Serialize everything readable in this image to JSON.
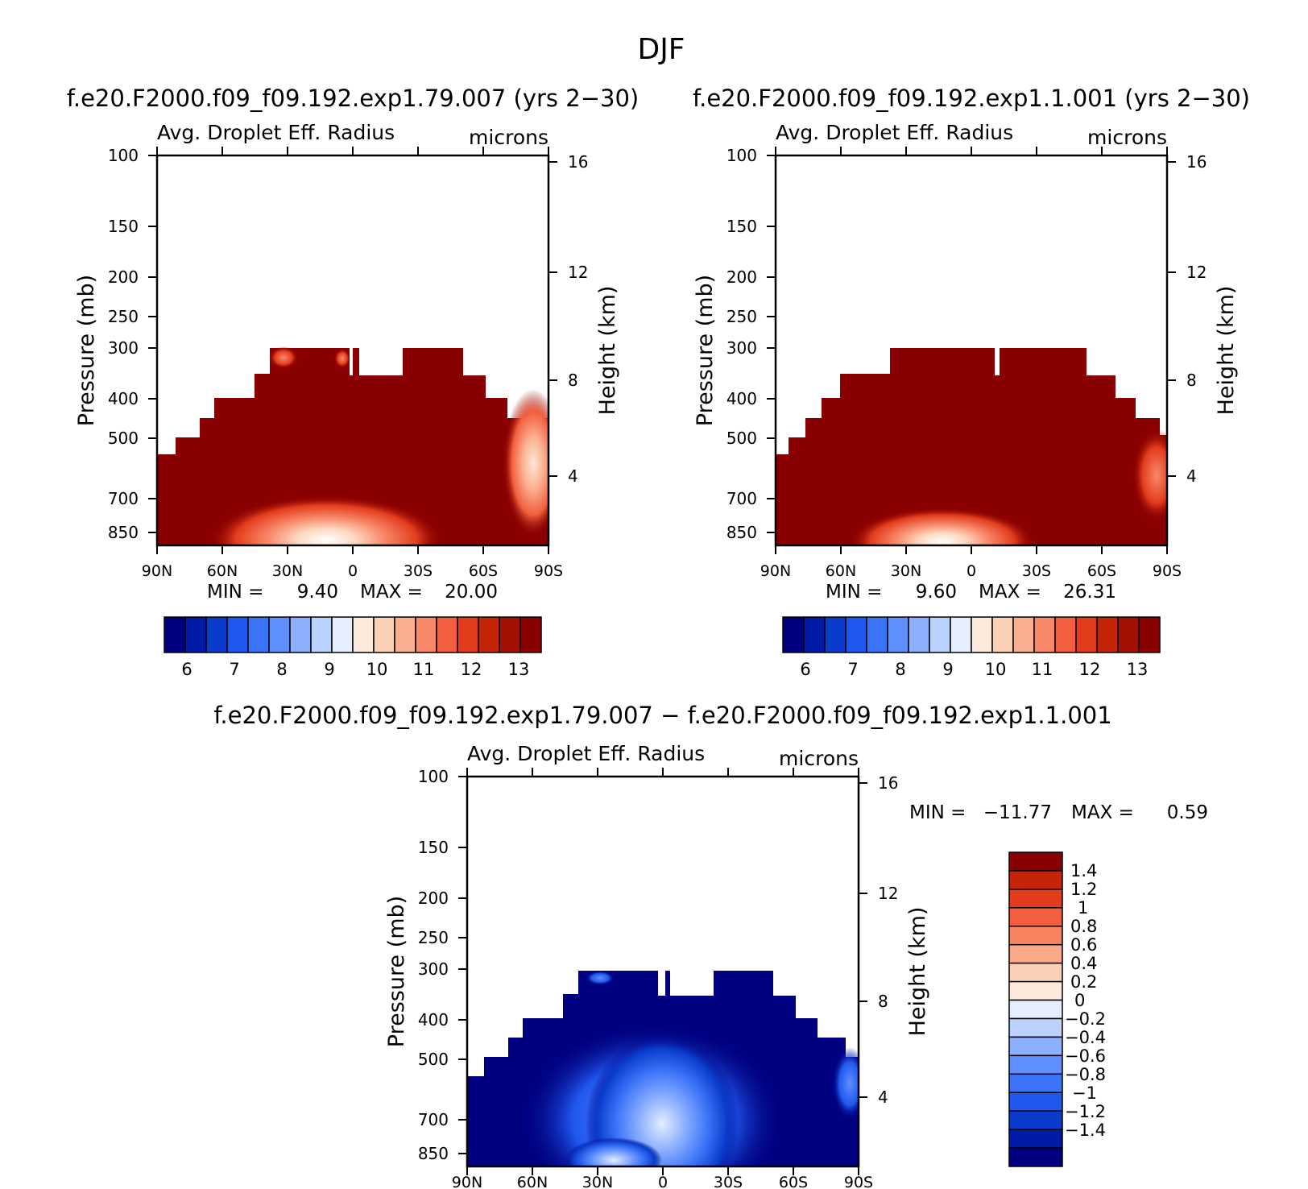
{
  "figure": {
    "title": "DJF",
    "diff_title": "f.e20.F2000.f09_f09.192.exp1.79.007 − f.e20.F2000.f09_f09.192.exp1.1.001"
  },
  "colors": {
    "warm_dark": "#8a0000",
    "cool_dark": "#000080",
    "palette_warm": [
      "#000080",
      "#001aa8",
      "#0a3ccc",
      "#1f58ee",
      "#3c74f8",
      "#5f8ffc",
      "#8cb0fe",
      "#bcd2fe",
      "#e4eefe",
      "#fdeadc",
      "#fcd0b6",
      "#fab090",
      "#f7896a",
      "#f25e3e",
      "#e23c1c",
      "#c42408",
      "#a11002",
      "#8a0000"
    ],
    "palette_diff": [
      "#000080",
      "#001aa8",
      "#0a3ccc",
      "#1f58ee",
      "#3c74f8",
      "#5f8ffc",
      "#8cb0fe",
      "#bcd2fe",
      "#e4eefe",
      "#fdeadc",
      "#fcd0b6",
      "#f9a985",
      "#f7845e",
      "#f25e3e",
      "#e23c1c",
      "#c42408",
      "#8a0000"
    ]
  },
  "chart_data": [
    {
      "type": "heatmap",
      "id": "left",
      "title": "f.e20.F2000.f09_f09.192.exp1.79.007 (yrs 2−30)",
      "subtitle_left": "Avg. Droplet Eff. Radius",
      "subtitle_right": "microns",
      "xlabel": "",
      "ylabel": "Pressure (mb)",
      "ylabel_right": "Height (km)",
      "x_ticks": [
        "90N",
        "60N",
        "30N",
        "0",
        "30S",
        "60S",
        "90S"
      ],
      "y_ticks": [
        "100",
        "150",
        "200",
        "250",
        "300",
        "400",
        "500",
        "700",
        "850"
      ],
      "y_right_ticks": [
        "16",
        "12",
        "8",
        "4"
      ],
      "stats": {
        "min_label": "MIN =",
        "min": "9.40",
        "max_label": "MAX =",
        "max": "20.00"
      },
      "colorbar": {
        "labels": [
          "6",
          "7",
          "8",
          "9",
          "10",
          "11",
          "12",
          "13"
        ]
      },
      "fill": "warm",
      "features": "dark red field from surface to ~300 mb; lighter orange/white plume near surface around 20N-10S; light/orange tongue near 90S at 500-700 mb"
    },
    {
      "type": "heatmap",
      "id": "right",
      "title": "f.e20.F2000.f09_f09.192.exp1.1.001 (yrs 2−30)",
      "subtitle_left": "Avg. Droplet Eff. Radius",
      "subtitle_right": "microns",
      "xlabel": "",
      "ylabel": "Pressure (mb)",
      "ylabel_right": "Height (km)",
      "x_ticks": [
        "90N",
        "60N",
        "30N",
        "0",
        "30S",
        "60S",
        "90S"
      ],
      "y_ticks": [
        "100",
        "150",
        "200",
        "250",
        "300",
        "400",
        "500",
        "700",
        "850"
      ],
      "y_right_ticks": [
        "16",
        "12",
        "8",
        "4"
      ],
      "stats": {
        "min_label": "MIN =",
        "min": "9.60",
        "max_label": "MAX =",
        "max": "26.31"
      },
      "colorbar": {
        "labels": [
          "6",
          "7",
          "8",
          "9",
          "10",
          "11",
          "12",
          "13"
        ]
      },
      "fill": "warm",
      "features": "dark red field; lighter plume near surface around 20N-10N; orange patch near 90S at 500-700 mb"
    },
    {
      "type": "heatmap",
      "id": "diff",
      "title": "",
      "subtitle_left": "Avg. Droplet Eff. Radius",
      "subtitle_right": "microns",
      "xlabel": "",
      "ylabel": "Pressure (mb)",
      "ylabel_right": "Height (km)",
      "x_ticks": [
        "90N",
        "60N",
        "30N",
        "0",
        "30S",
        "60S",
        "90S"
      ],
      "y_ticks": [
        "100",
        "150",
        "200",
        "250",
        "300",
        "400",
        "500",
        "700",
        "850"
      ],
      "y_right_ticks": [
        "16",
        "12",
        "8",
        "4"
      ],
      "stats": {
        "min_label": "MIN =",
        "min": "−11.77",
        "max_label": "MAX =",
        "max": "0.59"
      },
      "colorbar": {
        "labels": [
          "1.4",
          "1.2",
          "1",
          "0.8",
          "0.6",
          "0.4",
          "0.2",
          "0",
          "−0.2",
          "−0.4",
          "−0.6",
          "−0.8",
          "−1",
          "−1.2",
          "−1.4"
        ]
      },
      "fill": "cool",
      "features": "dark blue field; lighter blue plume from surface to ~500 mb between 40N and 30S"
    }
  ]
}
